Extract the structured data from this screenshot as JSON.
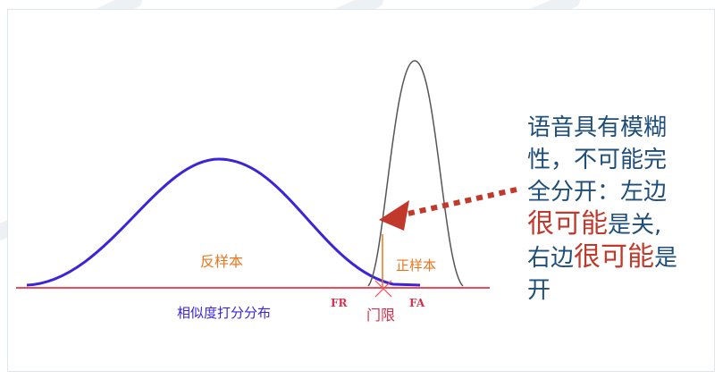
{
  "diagram": {
    "negative_label": "反样本",
    "positive_label": "正样本",
    "score_axis_label": "相似度打分分布",
    "fr_label": "FR",
    "fa_label": "FA",
    "threshold_label": "门限",
    "colors": {
      "negative_curve": "#3b25d8",
      "positive_curve": "#555555",
      "axis": "#f04a5a",
      "region_label": "#e8781e",
      "score_label": "#3b25d8",
      "threshold": "#e8781e",
      "arrow": "#c0392b",
      "annotation_text": "#1f4e79",
      "annotation_emphasis": "#c0392b"
    }
  },
  "annotation": {
    "line1": "语音具有模糊",
    "line2": "性，不可能完",
    "line3": "全分开：左边",
    "emph_left": "很可能",
    "tail_left": "是关,",
    "line5_pre": "右边",
    "emph_right": "很可能",
    "line5_post": "是",
    "line6": "开"
  }
}
